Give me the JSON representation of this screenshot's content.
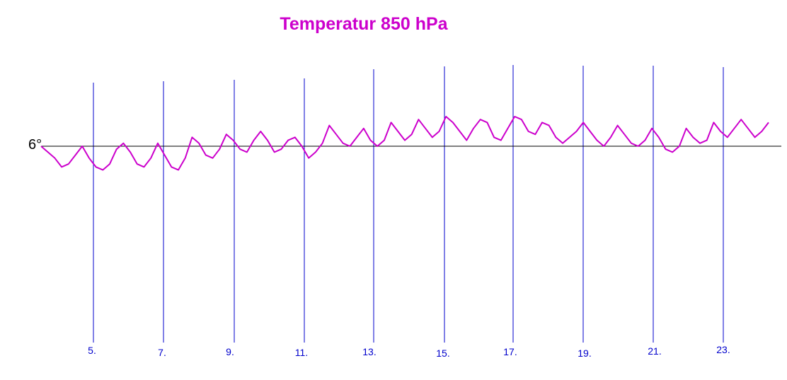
{
  "chart_data": {
    "type": "line",
    "title": "Temperatur 850 hPa",
    "reference_line": {
      "label": "6°",
      "value": 6
    },
    "x_tick_labels": [
      "5.",
      "7.",
      "9.",
      "11.",
      "13.",
      "15.",
      "17.",
      "19.",
      "21.",
      "23."
    ],
    "grid_vertical": true,
    "series": [
      {
        "values": [
          6.0,
          5.8,
          5.6,
          5.3,
          5.4,
          5.7,
          6.0,
          5.6,
          5.3,
          5.2,
          5.4,
          5.9,
          6.1,
          5.8,
          5.4,
          5.3,
          5.6,
          6.1,
          5.7,
          5.3,
          5.2,
          5.6,
          6.3,
          6.1,
          5.7,
          5.6,
          5.9,
          6.4,
          6.2,
          5.9,
          5.8,
          6.2,
          6.5,
          6.2,
          5.8,
          5.9,
          6.2,
          6.3,
          6.0,
          5.6,
          5.8,
          6.1,
          6.7,
          6.4,
          6.1,
          6.0,
          6.3,
          6.6,
          6.2,
          6.0,
          6.2,
          6.8,
          6.5,
          6.2,
          6.4,
          6.9,
          6.6,
          6.3,
          6.5,
          7.0,
          6.8,
          6.5,
          6.2,
          6.6,
          6.9,
          6.8,
          6.3,
          6.2,
          6.6,
          7.0,
          6.9,
          6.5,
          6.4,
          6.8,
          6.7,
          6.3,
          6.1,
          6.3,
          6.5,
          6.8,
          6.5,
          6.2,
          6.0,
          6.3,
          6.7,
          6.4,
          6.1,
          6.0,
          6.2,
          6.6,
          6.3,
          5.9,
          5.8,
          6.0,
          6.6,
          6.3,
          6.1,
          6.2,
          6.8,
          6.5,
          6.3,
          6.6,
          6.9,
          6.6,
          6.3,
          6.5,
          6.8
        ]
      }
    ]
  },
  "colors": {
    "title": "#cc00cc",
    "series": "#cc00cc",
    "grid": "#0000cc",
    "tick_label": "#0000cc",
    "reference": "#000000"
  }
}
